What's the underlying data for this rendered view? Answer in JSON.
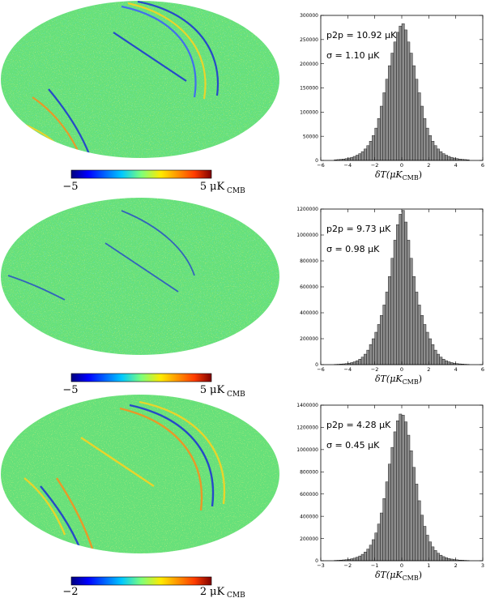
{
  "colors": {
    "map_base": "#66e07a",
    "hist_bar": "#8c8c8c",
    "hist_edge": "#000000",
    "jet": [
      "#00007f",
      "#0000ff",
      "#00c8ff",
      "#7dff7a",
      "#ffea00",
      "#ff3c00",
      "#7f0000"
    ]
  },
  "panels": [
    {
      "colorbar": {
        "min_label": "−5",
        "max_label": "5",
        "unit_main": "μK",
        "unit_sub": "CMB"
      },
      "chart_data": {
        "type": "bar",
        "title": "",
        "xlabel_main": "δT(μK",
        "xlabel_sub": "CMB",
        "xlabel_close": ")",
        "xlim": [
          -6,
          6
        ],
        "ylim": [
          0,
          300000
        ],
        "xticks": [
          -6,
          -4,
          -2,
          0,
          2,
          4,
          6
        ],
        "yticks": [
          0,
          50000,
          100000,
          150000,
          200000,
          250000,
          300000
        ],
        "annotation_p2p": "p2p = 10.92 μK",
        "annotation_sigma": "σ = 1.10 μK",
        "bin_width": 0.2,
        "x": [
          -4.9,
          -4.7,
          -4.5,
          -4.3,
          -4.1,
          -3.9,
          -3.7,
          -3.5,
          -3.3,
          -3.1,
          -2.9,
          -2.7,
          -2.5,
          -2.3,
          -2.1,
          -1.9,
          -1.7,
          -1.5,
          -1.3,
          -1.1,
          -0.9,
          -0.7,
          -0.5,
          -0.3,
          -0.1,
          0.1,
          0.3,
          0.5,
          0.7,
          0.9,
          1.1,
          1.3,
          1.5,
          1.7,
          1.9,
          2.1,
          2.3,
          2.5,
          2.7,
          2.9,
          3.1,
          3.3,
          3.5,
          3.7,
          3.9,
          4.1,
          4.3,
          4.5,
          4.7,
          4.9
        ],
        "values": [
          1400,
          1800,
          2300,
          3000,
          3900,
          5000,
          6500,
          8400,
          10900,
          14100,
          18300,
          23700,
          30700,
          39800,
          51600,
          66900,
          86700,
          112300,
          140000,
          168000,
          196000,
          222000,
          245000,
          265000,
          278000,
          283000,
          270000,
          245000,
          222000,
          196000,
          168000,
          140000,
          112300,
          86700,
          66900,
          51600,
          39800,
          30700,
          23700,
          18300,
          14100,
          10900,
          8400,
          6500,
          5000,
          3900,
          3000,
          2300,
          1800,
          1400
        ]
      }
    },
    {
      "colorbar": {
        "min_label": "−5",
        "max_label": "5",
        "unit_main": "μK",
        "unit_sub": "CMB"
      },
      "chart_data": {
        "type": "bar",
        "title": "",
        "xlabel_main": "δT(μK",
        "xlabel_sub": "CMB",
        "xlabel_close": ")",
        "xlim": [
          -6,
          6
        ],
        "ylim": [
          0,
          1200000
        ],
        "xticks": [
          -6,
          -4,
          -2,
          0,
          2,
          4,
          6
        ],
        "yticks": [
          0,
          200000,
          400000,
          600000,
          800000,
          1000000,
          1200000
        ],
        "annotation_p2p": "p2p = 9.73 μK",
        "annotation_sigma": "σ = 0.98 μK",
        "bin_width": 0.2,
        "x": [
          -4.9,
          -4.7,
          -4.5,
          -4.3,
          -4.1,
          -3.9,
          -3.7,
          -3.5,
          -3.3,
          -3.1,
          -2.9,
          -2.7,
          -2.5,
          -2.3,
          -2.1,
          -1.9,
          -1.7,
          -1.5,
          -1.3,
          -1.1,
          -0.9,
          -0.7,
          -0.5,
          -0.3,
          -0.1,
          0.1,
          0.3,
          0.5,
          0.7,
          0.9,
          1.1,
          1.3,
          1.5,
          1.7,
          1.9,
          2.1,
          2.3,
          2.5,
          2.7,
          2.9,
          3.1,
          3.3,
          3.5,
          3.7,
          3.9,
          4.1,
          4.3,
          4.5,
          4.7,
          4.9
        ],
        "values": [
          2200,
          3100,
          4300,
          6000,
          8300,
          11500,
          15900,
          22000,
          30500,
          42200,
          58500,
          81000,
          112000,
          155000,
          200000,
          250000,
          310000,
          380000,
          460000,
          560000,
          680000,
          820000,
          960000,
          1080000,
          1160000,
          1190000,
          1100000,
          960000,
          820000,
          680000,
          560000,
          460000,
          380000,
          310000,
          250000,
          200000,
          155000,
          112000,
          81000,
          58500,
          42200,
          30500,
          22000,
          15900,
          11500,
          8300,
          6000,
          4300,
          3100,
          2200
        ]
      }
    },
    {
      "colorbar": {
        "min_label": "−2",
        "max_label": "2",
        "unit_main": "μK",
        "unit_sub": "CMB"
      },
      "chart_data": {
        "type": "bar",
        "title": "",
        "xlabel_main": "δT(μK",
        "xlabel_sub": "CMB",
        "xlabel_close": ")",
        "xlim": [
          -3,
          3
        ],
        "ylim": [
          0,
          1400000
        ],
        "xticks": [
          -3,
          -2,
          -1,
          0,
          1,
          2,
          3
        ],
        "yticks": [
          0,
          200000,
          400000,
          600000,
          800000,
          1000000,
          1200000,
          1400000
        ],
        "annotation_p2p": "p2p = 4.28 μK",
        "annotation_sigma": "σ = 0.45 μK",
        "bin_width": 0.1,
        "x": [
          -2.45,
          -2.35,
          -2.25,
          -2.15,
          -2.05,
          -1.95,
          -1.85,
          -1.75,
          -1.65,
          -1.55,
          -1.45,
          -1.35,
          -1.25,
          -1.15,
          -1.05,
          -0.95,
          -0.85,
          -0.75,
          -0.65,
          -0.55,
          -0.45,
          -0.35,
          -0.25,
          -0.15,
          -0.05,
          0.05,
          0.15,
          0.25,
          0.35,
          0.45,
          0.55,
          0.65,
          0.75,
          0.85,
          0.95,
          1.05,
          1.15,
          1.25,
          1.35,
          1.45,
          1.55,
          1.65,
          1.75,
          1.85,
          1.95,
          2.05,
          2.15,
          2.25,
          2.35,
          2.45
        ],
        "values": [
          3000,
          4000,
          5500,
          7500,
          10000,
          13500,
          18000,
          24000,
          32000,
          43000,
          58000,
          78000,
          105000,
          140000,
          190000,
          250000,
          330000,
          430000,
          560000,
          710000,
          870000,
          1020000,
          1160000,
          1260000,
          1320000,
          1310000,
          1250000,
          1130000,
          990000,
          840000,
          690000,
          540000,
          410000,
          310000,
          230000,
          170000,
          125000,
          92000,
          68000,
          50000,
          37000,
          27000,
          20000,
          15000,
          11000,
          8200,
          6000,
          4500,
          3300,
          2400
        ]
      }
    }
  ]
}
